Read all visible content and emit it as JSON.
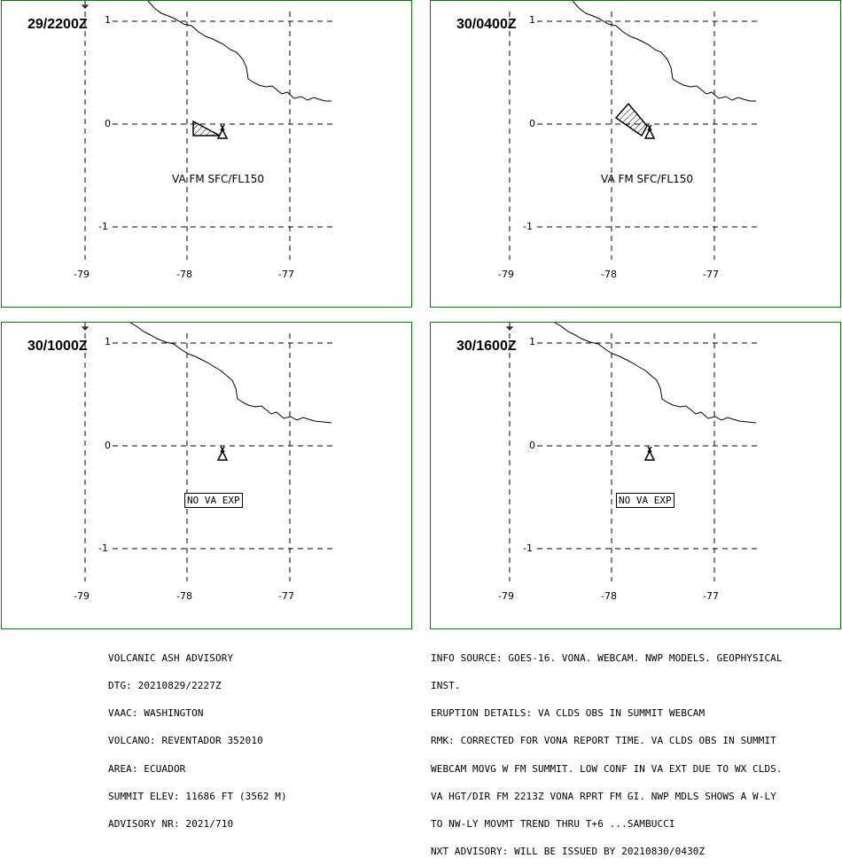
{
  "panels": [
    {
      "time": "29/2200Z",
      "message": "VA FM SFC/FL150",
      "no_va": ""
    },
    {
      "time": "30/0400Z",
      "message": "VA FM SFC/FL150",
      "no_va": ""
    },
    {
      "time": "30/1000Z",
      "message": "",
      "no_va": "NO VA EXP"
    },
    {
      "time": "30/1600Z",
      "message": "",
      "no_va": "NO VA EXP"
    }
  ],
  "axes": {
    "lat_labels": [
      "1",
      "0",
      "-1"
    ],
    "lon_labels": [
      "-79",
      "-78",
      "-77"
    ]
  },
  "advisory_left": {
    "lines": [
      "VOLCANIC ASH ADVISORY",
      "DTG: 20210829/2227Z",
      "VAAC: WASHINGTON",
      "VOLCANO: REVENTADOR 352010",
      "AREA: ECUADOR",
      "SUMMIT ELEV: 11686 FT (3562 M)",
      "ADVISORY NR: 2021/710"
    ]
  },
  "advisory_right": {
    "lines": [
      "INFO SOURCE: GOES-16. VONA. WEBCAM. NWP MODELS. GEOPHYSICAL",
      "INST.",
      "ERUPTION DETAILS: VA CLDS OBS IN SUMMIT WEBCAM",
      "RMK: CORRECTED FOR VONA REPORT TIME. VA CLDS OBS IN SUMMIT",
      "WEBCAM MOVG W FM SUMMIT. LOW CONF IN VA EXT DUE TO WX CLDS.",
      "VA HGT/DIR FM 2213Z VONA RPRT FM GI. NWP MDLS SHOWS A W-LY",
      "TO NW-LY MOVMT TREND THRU T+6 ...SAMBUCCI",
      "NXT ADVISORY: WILL BE ISSUED BY 20210830/0430Z"
    ]
  },
  "colors": {
    "frame": "#008000",
    "lines": "#000000"
  }
}
